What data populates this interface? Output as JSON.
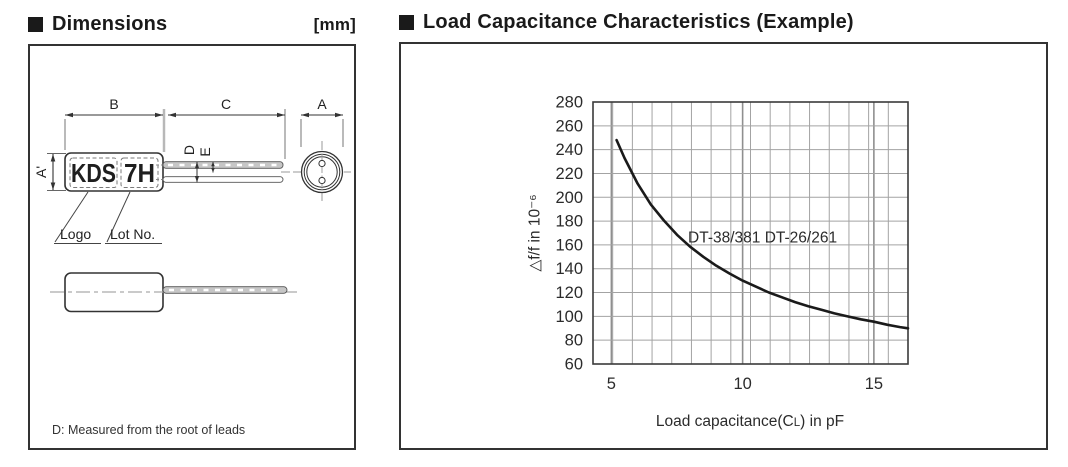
{
  "left_panel": {
    "title": "Dimensions",
    "unit": "[mm]",
    "drawing": {
      "marking_logo": "KDS",
      "marking_lot": "7H",
      "dim_B": "B",
      "dim_C": "C",
      "dim_A": "A",
      "dim_A_prime": "A'",
      "dim_D": "D",
      "dim_E": "E",
      "callout_logo": "Logo",
      "callout_lot": "Lot No.",
      "note": "D: Measured from the root of leads"
    }
  },
  "right_panel": {
    "title": "Load Capacitance Characteristics (Example)"
  },
  "chart_data": {
    "type": "line",
    "title": "Load Capacitance Characteristics (Example)",
    "xlabel": "Load capacitance(CL) in pF",
    "xlabel_parts": {
      "pre": "Load capacitance(C",
      "sub": "L",
      "post": ") in pF"
    },
    "ylabel": "△f/f in 10⁻⁶",
    "xlim": [
      4.3,
      16.3
    ],
    "ylim": [
      60,
      280
    ],
    "x_ticks": [
      5,
      10,
      15
    ],
    "y_ticks": [
      60,
      80,
      100,
      120,
      140,
      160,
      180,
      200,
      220,
      240,
      260,
      280
    ],
    "y_step": 20,
    "grid": {
      "on": true,
      "x_divisions": 16
    },
    "legend_position": "none",
    "annotation": {
      "text": "DT-38/381 DT-26/261",
      "x": 7.92,
      "y": 162
    },
    "colors": {
      "curve": "#1a1a1a",
      "grid": "#a3a3a3",
      "grid_major": "#8f8f8f",
      "axis": "#3a3a3a",
      "text": "#2b2b2b"
    },
    "series": [
      {
        "name": "DT-38/381 DT-26/261",
        "points": [
          [
            5.2,
            248
          ],
          [
            5.5,
            233
          ],
          [
            6,
            211.5
          ],
          [
            6.5,
            194
          ],
          [
            7,
            180.5
          ],
          [
            7.5,
            168.5
          ],
          [
            8,
            158.5
          ],
          [
            8.5,
            150
          ],
          [
            9,
            142.5
          ],
          [
            9.5,
            136
          ],
          [
            10,
            130
          ],
          [
            10.5,
            125
          ],
          [
            11,
            120
          ],
          [
            11.5,
            116
          ],
          [
            12,
            112
          ],
          [
            12.5,
            108.5
          ],
          [
            13,
            105.5
          ],
          [
            13.5,
            102.5
          ],
          [
            14,
            100
          ],
          [
            14.5,
            97.5
          ],
          [
            15,
            95.5
          ],
          [
            15.5,
            93
          ],
          [
            16,
            91
          ],
          [
            16.3,
            90
          ]
        ]
      }
    ]
  }
}
